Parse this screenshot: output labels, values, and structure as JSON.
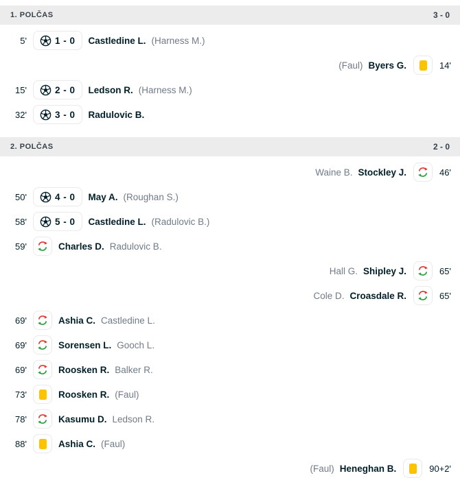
{
  "colors": {
    "header_bg": "#ececec",
    "header_text": "#36414a",
    "text_dark": "#001e28",
    "text_gray": "#707b87",
    "card_yellow": "#fcc400",
    "sub_out_red": "#e0382e",
    "sub_in_green": "#28a03c",
    "box_border": "#e9e9eb"
  },
  "icons": {
    "goal": "soccer-ball-icon",
    "substitution": "substitution-icon",
    "yellow_card": "yellow-card-icon"
  },
  "sections": [
    {
      "title": "1. POLČAS",
      "score": "3 - 0",
      "events": [
        {
          "side": "home",
          "type": "goal",
          "time": "5'",
          "score": "1 - 0",
          "player": "Castledine L.",
          "assist": "(Harness M.)"
        },
        {
          "side": "away",
          "type": "yellow-card",
          "time": "14'",
          "player": "Byers G.",
          "note": "(Faul)"
        },
        {
          "side": "home",
          "type": "goal",
          "time": "15'",
          "score": "2 - 0",
          "player": "Ledson R.",
          "assist": "(Harness M.)"
        },
        {
          "side": "home",
          "type": "goal",
          "time": "32'",
          "score": "3 - 0",
          "player": "Radulovic B."
        }
      ]
    },
    {
      "title": "2. POLČAS",
      "score": "2 - 0",
      "events": [
        {
          "side": "away",
          "type": "substitution",
          "time": "46'",
          "player": "Stockley J.",
          "secondary": "Waine B."
        },
        {
          "side": "home",
          "type": "goal",
          "time": "50'",
          "score": "4 - 0",
          "player": "May A.",
          "assist": "(Roughan S.)"
        },
        {
          "side": "home",
          "type": "goal",
          "time": "58'",
          "score": "5 - 0",
          "player": "Castledine L.",
          "assist": "(Radulovic B.)"
        },
        {
          "side": "home",
          "type": "substitution",
          "time": "59'",
          "player": "Charles D.",
          "secondary": "Radulovic B."
        },
        {
          "side": "away",
          "type": "substitution",
          "time": "65'",
          "player": "Shipley J.",
          "secondary": "Hall G."
        },
        {
          "side": "away",
          "type": "substitution",
          "time": "65'",
          "player": "Croasdale R.",
          "secondary": "Cole D."
        },
        {
          "side": "home",
          "type": "substitution",
          "time": "69'",
          "player": "Ashia C.",
          "secondary": "Castledine L."
        },
        {
          "side": "home",
          "type": "substitution",
          "time": "69'",
          "player": "Sorensen L.",
          "secondary": "Gooch L."
        },
        {
          "side": "home",
          "type": "substitution",
          "time": "69'",
          "player": "Roosken R.",
          "secondary": "Balker R."
        },
        {
          "side": "home",
          "type": "yellow-card",
          "time": "73'",
          "player": "Roosken R.",
          "note": "(Faul)"
        },
        {
          "side": "home",
          "type": "substitution",
          "time": "78'",
          "player": "Kasumu D.",
          "secondary": "Ledson R."
        },
        {
          "side": "home",
          "type": "yellow-card",
          "time": "88'",
          "player": "Ashia C.",
          "note": "(Faul)"
        },
        {
          "side": "away",
          "type": "yellow-card",
          "time": "90+2'",
          "player": "Heneghan B.",
          "note": "(Faul)"
        }
      ]
    }
  ]
}
